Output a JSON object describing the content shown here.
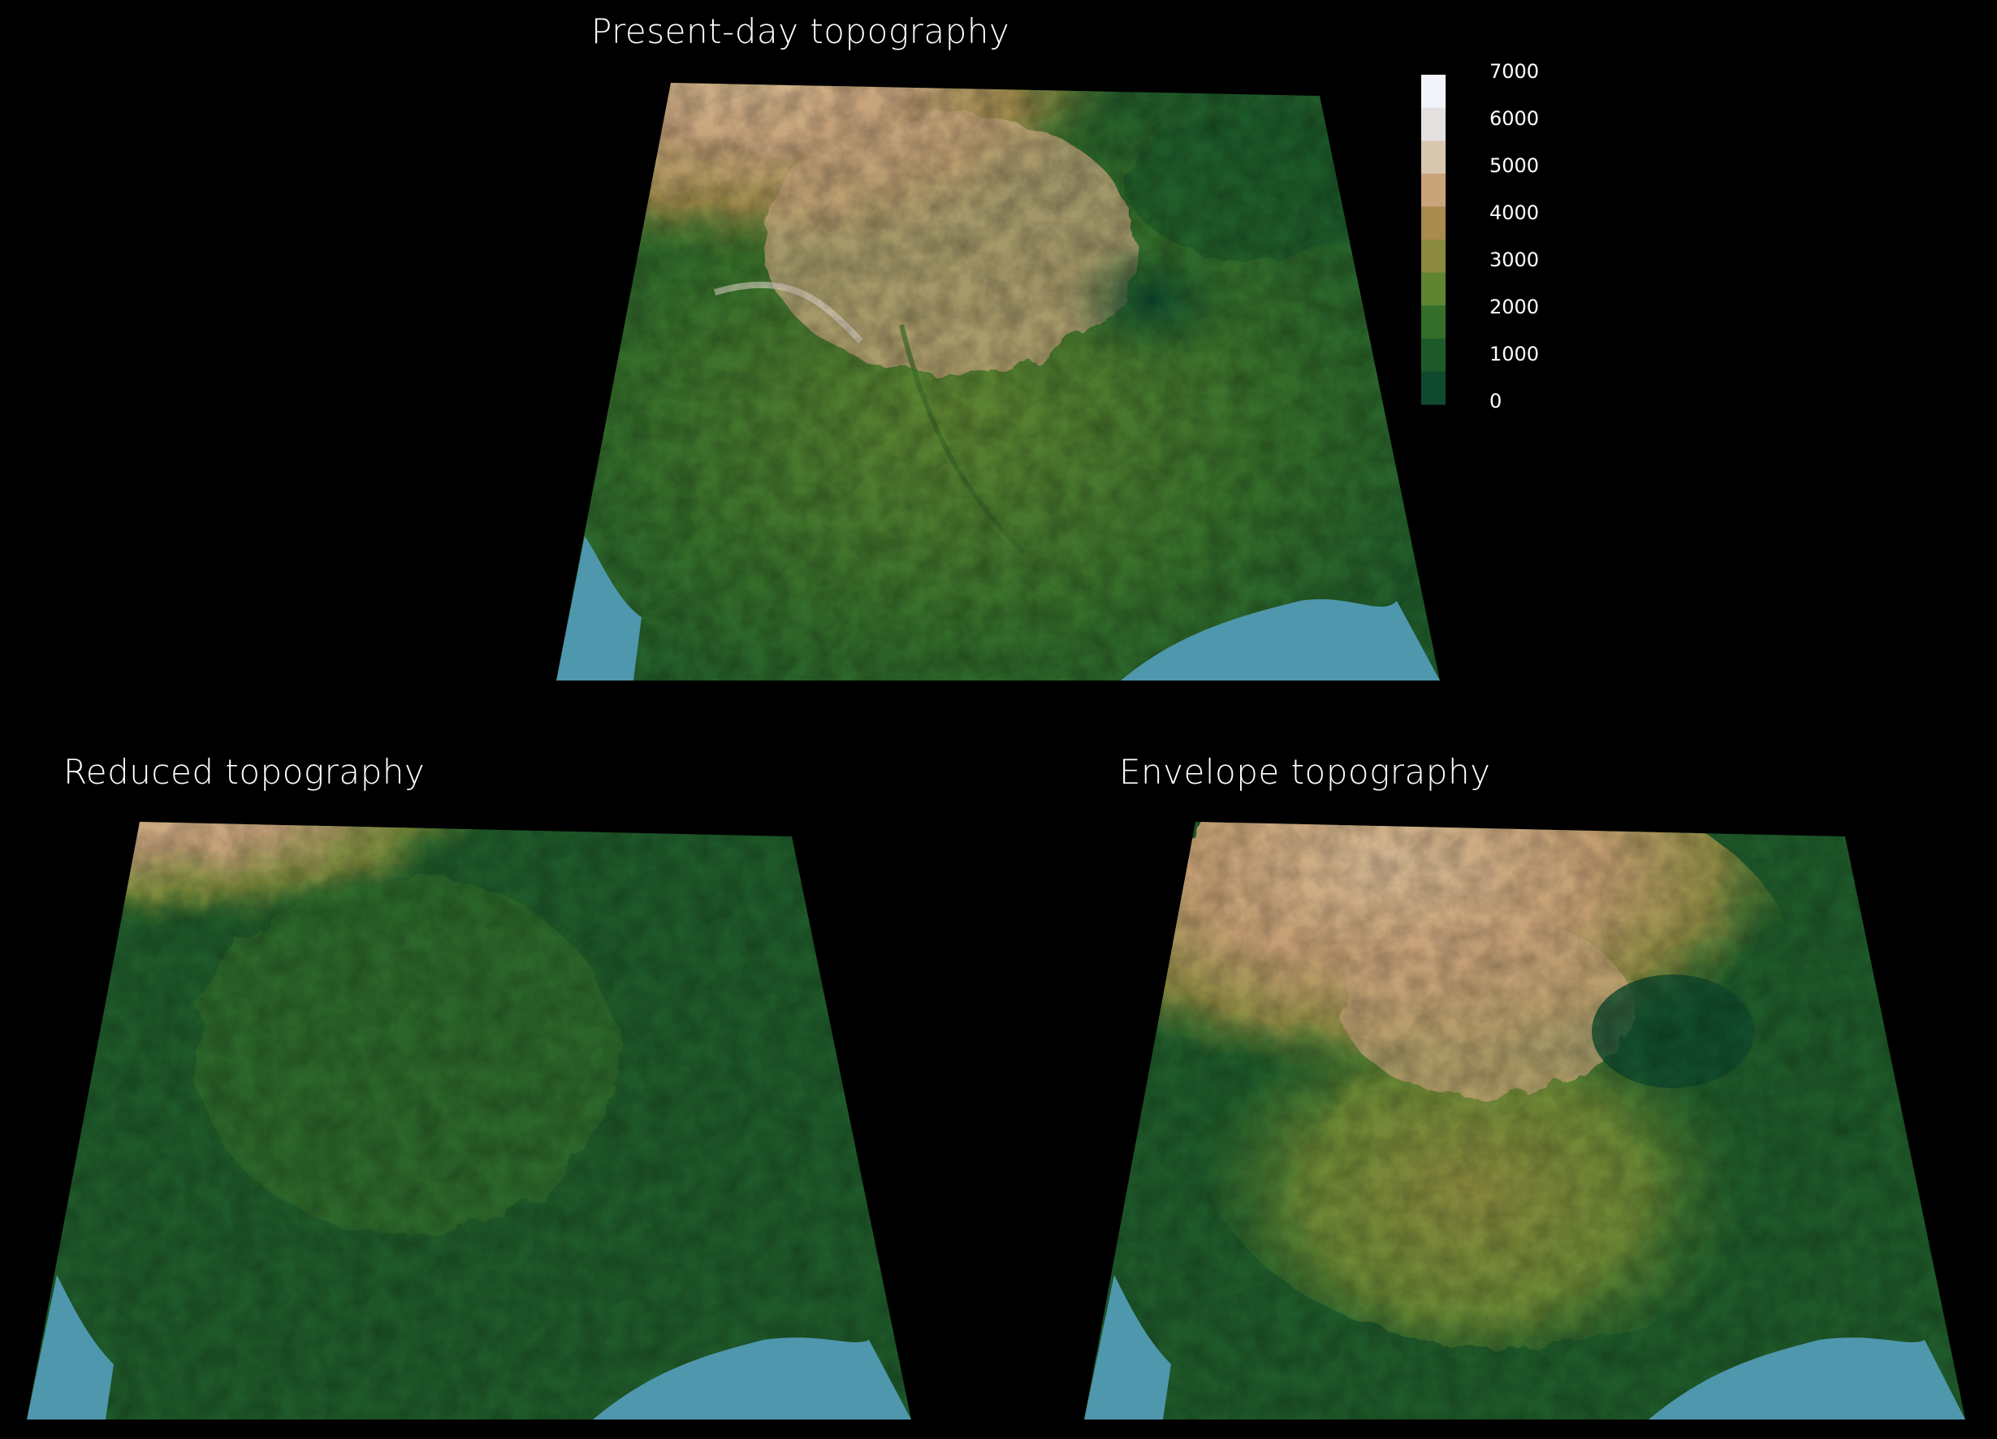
{
  "panels": {
    "present": {
      "title": "Present-day topography"
    },
    "reduced": {
      "title": "Reduced topography"
    },
    "envelope": {
      "title": "Envelope topography"
    }
  },
  "legend": {
    "labels": [
      "7000",
      "6000",
      "5000",
      "4000",
      "3000",
      "2000",
      "1000",
      "0"
    ],
    "colors": [
      "#f3f3fb",
      "#e4e0e0",
      "#d9c8b0",
      "#c9a37a",
      "#a98a4f",
      "#8b8a3e",
      "#5f8532",
      "#356e2a",
      "#1f5a2a",
      "#0f4a2e"
    ]
  },
  "colors": {
    "background": "#000000",
    "water": "#4f97ad",
    "lowland": "#1f5a2a",
    "midland": "#5f8532",
    "highland": "#c6a27a",
    "peak": "#e8ddd0"
  }
}
